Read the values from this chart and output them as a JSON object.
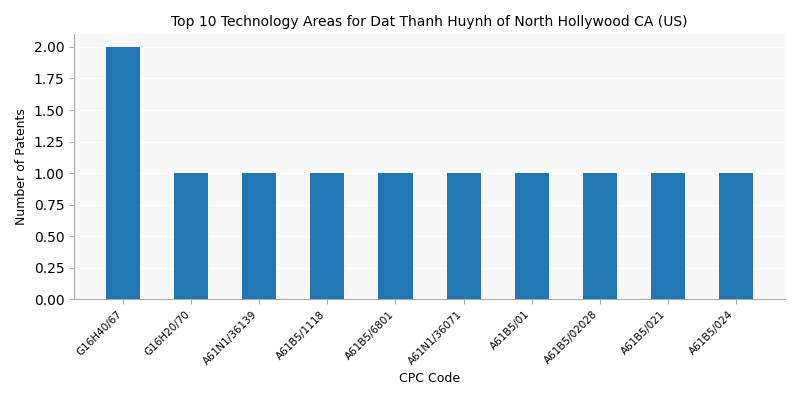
{
  "title": "Top 10 Technology Areas for Dat Thanh Huynh of North Hollywood CA (US)",
  "xlabel": "CPC Code",
  "ylabel": "Number of Patents",
  "categories": [
    "G16H40/67",
    "G16H20/70",
    "A61N1/36139",
    "A61B5/1118",
    "A61B5/6801",
    "A61N1/36071",
    "A61B5/01",
    "A61B5/02028",
    "A61B5/021",
    "A61B5/024"
  ],
  "values": [
    2,
    1,
    1,
    1,
    1,
    1,
    1,
    1,
    1,
    1
  ],
  "bar_color": "#2077b4",
  "ylim": [
    0,
    2.1
  ],
  "yticks": [
    0.0,
    0.25,
    0.5,
    0.75,
    1.0,
    1.25,
    1.5,
    1.75,
    2.0
  ],
  "bar_width": 0.5,
  "figsize": [
    8.0,
    4.0
  ],
  "dpi": 100,
  "title_fontsize": 10,
  "label_fontsize": 9,
  "tick_fontsize": 7.5
}
